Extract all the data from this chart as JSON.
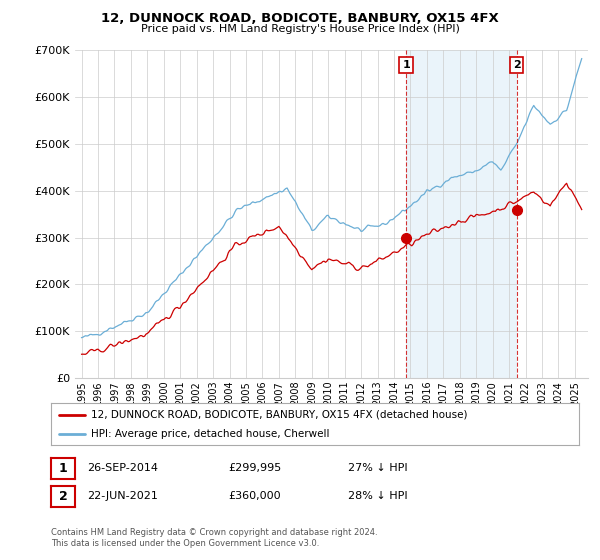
{
  "title": "12, DUNNOCK ROAD, BODICOTE, BANBURY, OX15 4FX",
  "subtitle": "Price paid vs. HM Land Registry's House Price Index (HPI)",
  "hpi_color": "#6baed6",
  "hpi_fill_color": "#ddeef8",
  "price_color": "#cc0000",
  "dashed_color": "#cc0000",
  "background_color": "#ffffff",
  "grid_color": "#cccccc",
  "ylim": [
    0,
    700000
  ],
  "yticks": [
    0,
    100000,
    200000,
    300000,
    400000,
    500000,
    600000,
    700000
  ],
  "legend_label_price": "12, DUNNOCK ROAD, BODICOTE, BANBURY, OX15 4FX (detached house)",
  "legend_label_hpi": "HPI: Average price, detached house, Cherwell",
  "annotation1_label": "1",
  "annotation1_date": "26-SEP-2014",
  "annotation1_value": "£299,995",
  "annotation1_pct": "27% ↓ HPI",
  "annotation2_label": "2",
  "annotation2_date": "22-JUN-2021",
  "annotation2_value": "£360,000",
  "annotation2_pct": "28% ↓ HPI",
  "footer": "Contains HM Land Registry data © Crown copyright and database right 2024.\nThis data is licensed under the Open Government Licence v3.0.",
  "sale1_year": 2014.74,
  "sale1_price": 299995,
  "sale2_year": 2021.47,
  "sale2_price": 360000,
  "xstart": 1995,
  "xend": 2025
}
